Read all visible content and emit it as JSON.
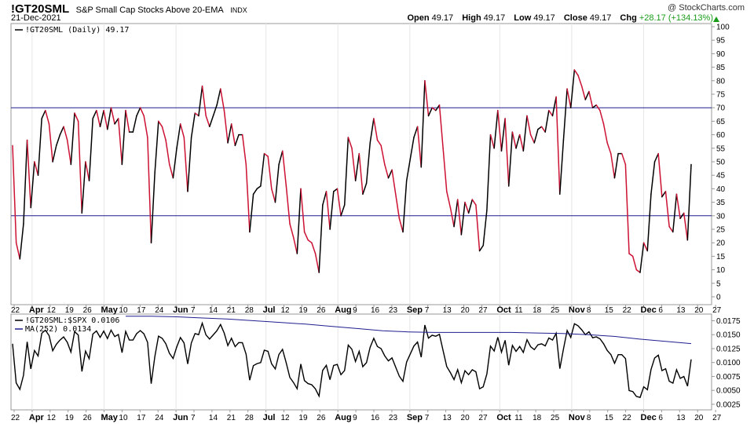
{
  "header": {
    "symbol": "!GT20SML",
    "name": "S&P Small Cap Stocks Above 20-EMA",
    "exchange": "INDX",
    "date": "21-Dec-2021",
    "credit": "@ StockCharts.com",
    "open_label": "Open",
    "open_value": "49.17",
    "high_label": "High",
    "high_value": "49.17",
    "low_label": "Low",
    "low_value": "49.17",
    "close_label": "Close",
    "close_value": "49.17",
    "chg_label": "Chg",
    "chg_value": "+28.17 (+134.13%)",
    "chg_color": "#1a9c1a"
  },
  "chart_data": [
    {
      "type": "line",
      "title": "S&P Small Cap Stocks Above 20-EMA",
      "legend": "!GT20SML (Daily) 49.17",
      "ylim": [
        0,
        100
      ],
      "yticks": [
        "0",
        "5",
        "10",
        "15",
        "20",
        "25",
        "30",
        "35",
        "40",
        "45",
        "50",
        "55",
        "60",
        "65",
        "70",
        "75",
        "80",
        "85",
        "90",
        "95",
        "100"
      ],
      "reference_lines": [
        70,
        30
      ],
      "up_color": "#000000",
      "down_color": "#cc1133",
      "values": [
        56,
        20,
        14,
        27,
        58,
        33,
        50,
        45,
        66,
        69,
        64,
        50,
        56,
        60,
        63,
        58,
        49,
        68,
        65,
        31,
        50,
        43,
        66,
        69,
        63,
        69,
        62,
        70,
        64,
        66,
        49,
        69,
        61,
        61,
        67,
        70,
        67,
        59,
        20,
        46,
        65,
        63,
        58,
        49,
        44,
        55,
        64,
        59,
        39,
        59,
        68,
        67,
        78,
        67,
        63,
        67,
        71,
        77,
        69,
        57,
        64,
        56,
        60,
        60,
        49,
        24,
        38,
        40,
        41,
        53,
        52,
        40,
        35,
        49,
        54,
        41,
        27,
        22,
        16,
        40,
        24,
        21,
        20,
        16,
        9,
        34,
        39,
        25,
        39,
        40,
        30,
        34,
        59,
        55,
        43,
        53,
        38,
        42,
        57,
        66,
        58,
        56,
        49,
        44,
        47,
        38,
        29,
        24,
        43,
        51,
        59,
        63,
        48,
        80,
        67,
        70,
        69,
        71,
        55,
        39,
        33,
        26,
        36,
        23,
        35,
        31,
        36,
        34,
        17,
        19,
        32,
        60,
        55,
        69,
        54,
        66,
        41,
        61,
        55,
        60,
        54,
        67,
        60,
        57,
        62,
        63,
        61,
        69,
        67,
        74,
        38,
        58,
        77,
        70,
        84,
        82,
        78,
        73,
        76,
        70,
        71,
        69,
        64,
        57,
        53,
        44,
        53,
        53,
        49,
        16,
        15,
        10,
        9,
        20,
        17,
        38,
        50,
        53,
        37,
        39,
        26,
        24,
        38,
        29,
        31,
        21,
        49
      ]
    },
    {
      "type": "line",
      "title": "!GT20SML:$SPX ratio",
      "legend": "!GT20SML:$SPX 0.0106",
      "ma_legend": "MA(252) 0.0134",
      "ylim": [
        0.0015,
        0.0187
      ],
      "yticks": [
        "0.0025",
        "0.0050",
        "0.0075",
        "0.0100",
        "0.0125",
        "0.0150",
        "0.0175"
      ],
      "ratio_color": "#000000",
      "ma_color": "#1f1f8f",
      "ma_values": [
        0.0183,
        0.0183,
        0.0182,
        0.018,
        0.0178,
        0.0175,
        0.0172,
        0.0169,
        0.0165,
        0.0161,
        0.0157,
        0.0155,
        0.0154,
        0.0154,
        0.0154,
        0.0154,
        0.0153,
        0.0152,
        0.015,
        0.0147,
        0.0142,
        0.0138,
        0.0134
      ]
    }
  ],
  "x_axis": {
    "labels": [
      "22",
      "Apr",
      "12",
      "19",
      "26",
      "May",
      "10",
      "17",
      "24",
      "Jun",
      "7",
      "14",
      "21",
      "28",
      "Jul",
      "12",
      "19",
      "26",
      "Aug",
      "9",
      "16",
      "23",
      "Sep",
      "7",
      "13",
      "20",
      "27",
      "Oct",
      "11",
      "18",
      "25",
      "Nov",
      "8",
      "15",
      "22",
      "Dec",
      "6",
      "13",
      "20",
      "27"
    ],
    "bold": [
      "Apr",
      "May",
      "Jun",
      "Jul",
      "Aug",
      "Sep",
      "Oct",
      "Nov",
      "Dec"
    ]
  }
}
